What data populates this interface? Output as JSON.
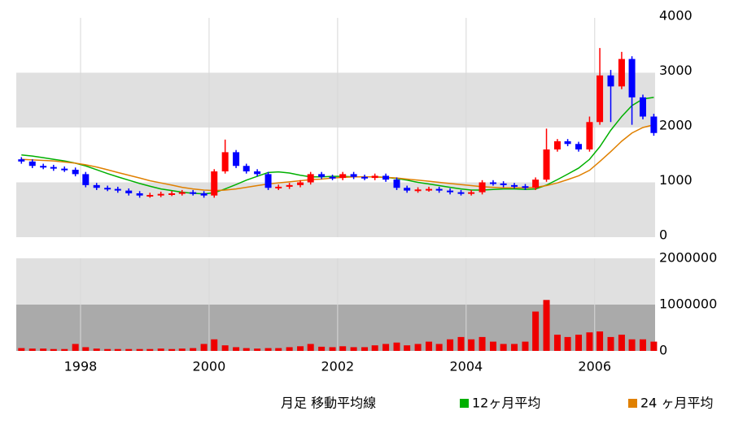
{
  "chart_data": [
    {
      "type": "candlestick",
      "legend_title": "月足 移動平均線",
      "up_color": "#ff0000",
      "down_color": "#0000ff",
      "xlim": [
        1997,
        2006.94
      ],
      "xticks": [
        1998,
        2000,
        2002,
        2004,
        2006
      ],
      "ylim": [
        0,
        4000
      ],
      "yticks": [
        0,
        1000,
        2000,
        3000,
        4000
      ],
      "grid": true,
      "x": [
        1997.08,
        1997.25,
        1997.42,
        1997.58,
        1997.75,
        1997.92,
        1998.08,
        1998.25,
        1998.42,
        1998.58,
        1998.75,
        1998.92,
        1999.08,
        1999.25,
        1999.42,
        1999.58,
        1999.75,
        1999.92,
        2000.08,
        2000.25,
        2000.42,
        2000.58,
        2000.75,
        2000.92,
        2001.08,
        2001.25,
        2001.42,
        2001.58,
        2001.75,
        2001.92,
        2002.08,
        2002.25,
        2002.42,
        2002.58,
        2002.75,
        2002.92,
        2003.08,
        2003.25,
        2003.42,
        2003.58,
        2003.75,
        2003.92,
        2004.08,
        2004.25,
        2004.42,
        2004.58,
        2004.75,
        2004.92,
        2005.08,
        2005.25,
        2005.42,
        2005.58,
        2005.75,
        2005.92,
        2006.08,
        2006.25,
        2006.42,
        2006.58,
        2006.75,
        2006.92
      ],
      "open": [
        1420,
        1380,
        1300,
        1280,
        1250,
        1230,
        1150,
        950,
        900,
        880,
        850,
        800,
        760,
        770,
        790,
        800,
        820,
        800,
        760,
        1200,
        1550,
        1300,
        1200,
        1150,
        900,
        920,
        950,
        1000,
        1150,
        1100,
        1080,
        1150,
        1100,
        1080,
        1120,
        1050,
        900,
        850,
        870,
        880,
        850,
        820,
        800,
        820,
        1000,
        980,
        950,
        930,
        900,
        1050,
        1600,
        1750,
        1700,
        1600,
        2100,
        2950,
        2750,
        3250,
        2550,
        2200
      ],
      "high": [
        1460,
        1420,
        1340,
        1320,
        1290,
        1270,
        1190,
        990,
        940,
        920,
        890,
        840,
        810,
        830,
        840,
        860,
        860,
        840,
        1240,
        1780,
        1590,
        1340,
        1240,
        1190,
        960,
        990,
        1040,
        1190,
        1190,
        1140,
        1190,
        1190,
        1140,
        1160,
        1160,
        1090,
        940,
        910,
        920,
        920,
        890,
        860,
        860,
        1040,
        1040,
        1020,
        990,
        970,
        1090,
        1980,
        1790,
        1790,
        1740,
        2200,
        3450,
        3050,
        3380,
        3300,
        2600,
        2250
      ],
      "low": [
        1340,
        1260,
        1240,
        1210,
        1190,
        1110,
        910,
        860,
        840,
        810,
        760,
        720,
        720,
        730,
        750,
        760,
        760,
        720,
        720,
        1160,
        1260,
        1160,
        1110,
        860,
        860,
        880,
        910,
        960,
        1060,
        1040,
        1040,
        1060,
        1040,
        1040,
        1010,
        860,
        810,
        810,
        830,
        810,
        780,
        760,
        760,
        780,
        940,
        910,
        890,
        860,
        860,
        1010,
        1560,
        1660,
        1560,
        1560,
        2050,
        2100,
        2700,
        2050,
        2150,
        1850
      ],
      "close": [
        1380,
        1300,
        1280,
        1250,
        1230,
        1150,
        950,
        900,
        880,
        850,
        800,
        760,
        770,
        790,
        800,
        820,
        800,
        760,
        1200,
        1550,
        1300,
        1200,
        1150,
        900,
        920,
        950,
        1000,
        1150,
        1100,
        1080,
        1150,
        1100,
        1080,
        1120,
        1050,
        900,
        850,
        870,
        880,
        850,
        820,
        800,
        820,
        1000,
        980,
        950,
        930,
        900,
        1050,
        1600,
        1750,
        1700,
        1600,
        2100,
        2950,
        2750,
        3250,
        2550,
        2200,
        1900
      ],
      "series": [
        {
          "name": "12ヶ月平均",
          "color": "#00b000",
          "values": [
            1500,
            1480,
            1450,
            1420,
            1390,
            1350,
            1300,
            1230,
            1160,
            1100,
            1040,
            980,
            930,
            880,
            850,
            820,
            800,
            790,
            810,
            880,
            960,
            1040,
            1110,
            1180,
            1190,
            1170,
            1130,
            1100,
            1100,
            1110,
            1110,
            1100,
            1100,
            1100,
            1090,
            1070,
            1040,
            1000,
            970,
            940,
            910,
            880,
            860,
            860,
            870,
            880,
            880,
            870,
            880,
            950,
            1050,
            1150,
            1260,
            1420,
            1650,
            1950,
            2200,
            2400,
            2520,
            2550
          ]
        },
        {
          "name": "24 ヶ月平均",
          "color": "#e08000",
          "values": [
            1420,
            1410,
            1400,
            1390,
            1370,
            1350,
            1320,
            1280,
            1230,
            1180,
            1130,
            1080,
            1030,
            990,
            950,
            910,
            880,
            860,
            850,
            860,
            880,
            910,
            940,
            970,
            990,
            1010,
            1030,
            1050,
            1060,
            1080,
            1090,
            1100,
            1100,
            1100,
            1090,
            1080,
            1060,
            1040,
            1020,
            1000,
            980,
            960,
            940,
            920,
            910,
            900,
            900,
            900,
            910,
            940,
            990,
            1050,
            1120,
            1220,
            1380,
            1560,
            1750,
            1900,
            2000,
            2050
          ]
        }
      ]
    },
    {
      "type": "bar",
      "color": "#ee0000",
      "ylim": [
        0,
        2000000
      ],
      "yticks": [
        0,
        1000000,
        2000000
      ],
      "values": [
        60000,
        50000,
        50000,
        40000,
        40000,
        150000,
        80000,
        50000,
        40000,
        40000,
        40000,
        40000,
        40000,
        50000,
        40000,
        50000,
        60000,
        150000,
        250000,
        120000,
        80000,
        60000,
        50000,
        60000,
        60000,
        80000,
        100000,
        150000,
        90000,
        80000,
        100000,
        80000,
        80000,
        120000,
        150000,
        180000,
        120000,
        150000,
        200000,
        150000,
        250000,
        300000,
        250000,
        300000,
        200000,
        150000,
        150000,
        200000,
        850000,
        1100000,
        350000,
        300000,
        350000,
        400000,
        420000,
        300000,
        350000,
        250000,
        250000,
        200000
      ]
    }
  ]
}
